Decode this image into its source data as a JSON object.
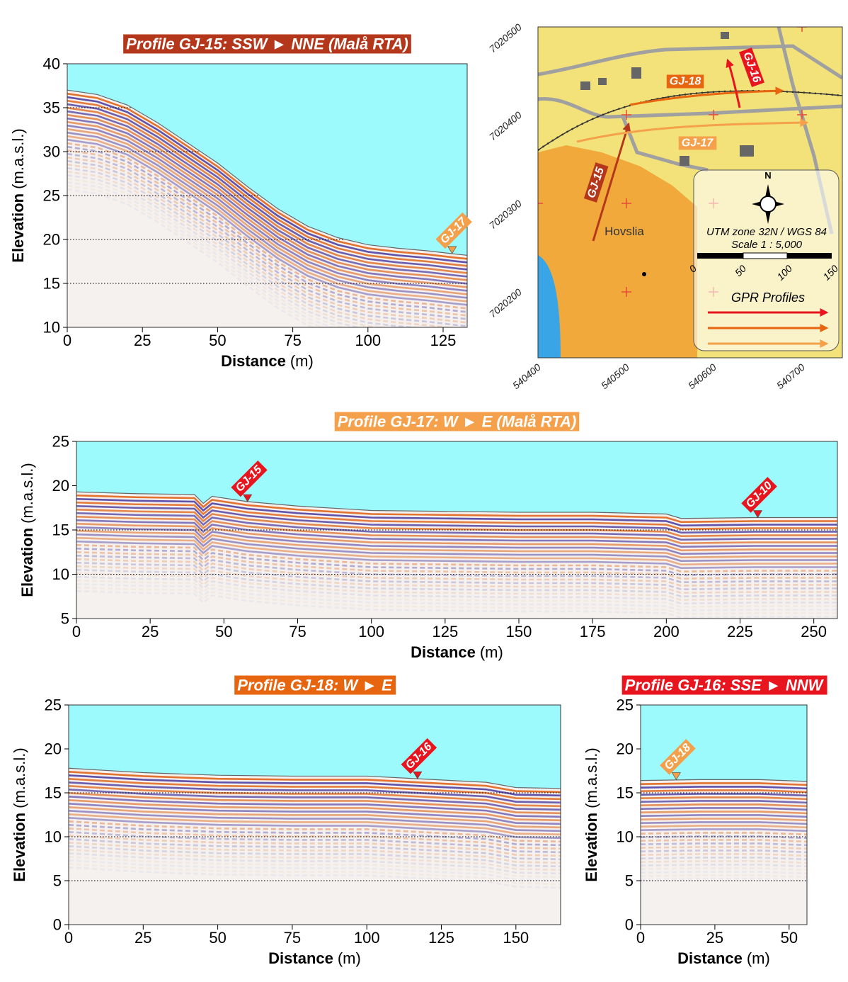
{
  "chart_data": [
    {
      "type": "area",
      "title": "Profile GJ-15: SSW ► NNE (Malå RTA)",
      "title_color": "#b5371b",
      "sky_color": "#9cfafc",
      "xlabel": "Distance",
      "xunit": "(m)",
      "ylabel": "Elevation",
      "yunit": "(m.a.s.l.)",
      "x": [
        0,
        10,
        20,
        30,
        40,
        50,
        60,
        70,
        80,
        90,
        100,
        110,
        120,
        130,
        133
      ],
      "values": [
        37,
        36.5,
        35.3,
        33.3,
        31,
        28.7,
        26,
        23.5,
        21.5,
        20.2,
        19.4,
        19,
        18.7,
        18.3,
        18.2
      ],
      "xlim": [
        0,
        133
      ],
      "ylim": [
        10,
        40
      ],
      "xticks": [
        0,
        25,
        50,
        75,
        100,
        125
      ],
      "yticks": [
        10,
        15,
        20,
        25,
        30,
        35,
        40
      ],
      "grid": true,
      "annotations": [
        {
          "x": 128,
          "y": 18.4,
          "label": "GJ-17",
          "color": "#f4a04a"
        }
      ]
    },
    {
      "type": "area",
      "title": "Profile GJ-17: W ► E (Malå RTA)",
      "title_color": "#f5a04a",
      "sky_color": "#9cfafc",
      "xlabel": "Distance",
      "xunit": "(m)",
      "ylabel": "Elevation",
      "yunit": "(m.a.s.l.)",
      "x": [
        0,
        20,
        40,
        43,
        46,
        58,
        75,
        100,
        125,
        150,
        175,
        200,
        205,
        230,
        258
      ],
      "values": [
        19.3,
        19.1,
        19,
        18,
        18.8,
        18.2,
        17.7,
        17.2,
        17.1,
        17,
        17,
        16.8,
        16.3,
        16.4,
        16.4
      ],
      "xlim": [
        0,
        258
      ],
      "ylim": [
        5,
        25
      ],
      "xticks": [
        0,
        25,
        50,
        75,
        100,
        125,
        150,
        175,
        200,
        225,
        250
      ],
      "yticks": [
        5,
        10,
        15,
        20,
        25
      ],
      "grid": true,
      "annotations": [
        {
          "x": 58,
          "y": 18.2,
          "label": "GJ-15",
          "color": "#e8141e"
        },
        {
          "x": 231,
          "y": 16.4,
          "label": "GJ-10",
          "color": "#e8141e"
        }
      ]
    },
    {
      "type": "area",
      "title": "Profile GJ-18: W ► E",
      "title_color": "#e8650f",
      "sky_color": "#9cfafc",
      "xlabel": "Distance",
      "xunit": "(m)",
      "ylabel": "Elevation",
      "yunit": "(m.a.s.l.)",
      "x": [
        0,
        25,
        50,
        75,
        100,
        117,
        140,
        150,
        165
      ],
      "values": [
        17.8,
        17.3,
        17,
        16.9,
        16.9,
        16.6,
        16.2,
        15.6,
        15.5
      ],
      "xlim": [
        0,
        165
      ],
      "ylim": [
        0,
        25
      ],
      "xticks": [
        0,
        25,
        50,
        75,
        100,
        125,
        150
      ],
      "yticks": [
        0,
        5,
        10,
        15,
        20,
        25
      ],
      "grid": true,
      "annotations": [
        {
          "x": 117,
          "y": 16.6,
          "label": "GJ-16",
          "color": "#e8141e"
        }
      ]
    },
    {
      "type": "area",
      "title": "Profile GJ-16: SSE ► NNW",
      "title_color": "#e8141e",
      "sky_color": "#9cfafc",
      "xlabel": "Distance",
      "xunit": "(m)",
      "ylabel": "Elevation",
      "yunit": "(m.a.s.l.)",
      "x": [
        0,
        20,
        40,
        56
      ],
      "values": [
        16.4,
        16.5,
        16.5,
        16.3
      ],
      "xlim": [
        0,
        56
      ],
      "ylim": [
        0,
        25
      ],
      "xticks": [
        0,
        25,
        50
      ],
      "yticks": [
        0,
        5,
        10,
        15,
        20,
        25
      ],
      "grid": true,
      "annotations": [
        {
          "x": 12,
          "y": 16.5,
          "label": "GJ-18",
          "color": "#f4a04a"
        }
      ]
    }
  ],
  "map": {
    "northings": [
      "7020500",
      "7020400",
      "7020300",
      "7020200"
    ],
    "eastings": [
      "540400",
      "540500",
      "540600",
      "540700"
    ],
    "profiles": [
      "GJ-18",
      "GJ-16",
      "GJ-17",
      "GJ-15"
    ],
    "place": "Hovslia",
    "north": "N",
    "datum": "UTM zone 32N / WGS 84",
    "scale": "Scale 1 : 5,000",
    "scale_labels": [
      "0",
      "50",
      "100",
      "150"
    ],
    "legend_title": "GPR Profiles"
  }
}
